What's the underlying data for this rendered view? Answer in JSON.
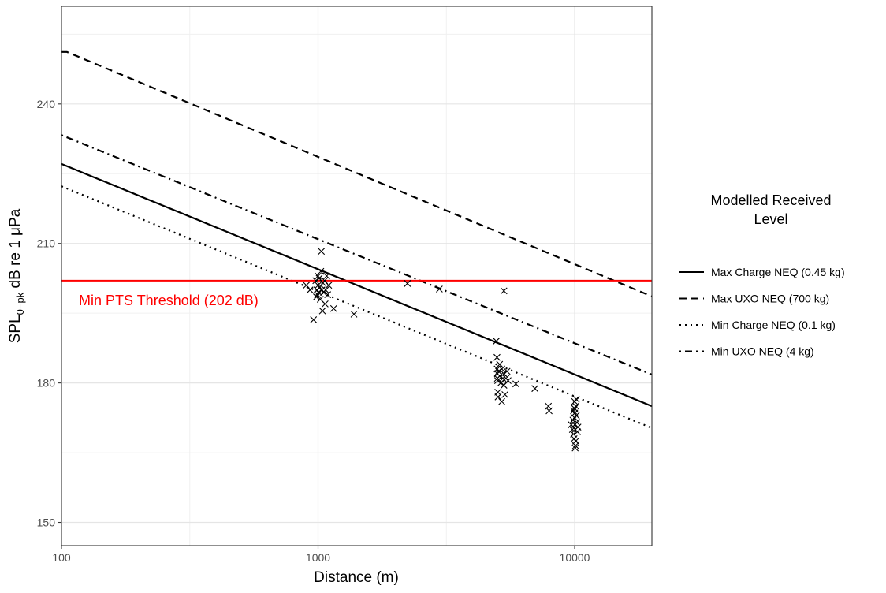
{
  "chart_data": {
    "type": "line",
    "xlabel": "Distance (m)",
    "ylabel_main": "SPL",
    "ylabel_sub": "0−pk",
    "ylabel_rest": " dB re 1 μPa",
    "xscale": "log",
    "xlim": [
      100,
      20000
    ],
    "ylim": [
      145,
      261
    ],
    "x_ticks": [
      100,
      1000,
      10000
    ],
    "x_tick_labels": [
      "100",
      "1000",
      "10000"
    ],
    "y_ticks": [
      150,
      180,
      210,
      240
    ],
    "y_tick_labels": [
      "150",
      "180",
      "210",
      "240"
    ],
    "grid": true,
    "legend": {
      "title_line1": "Modelled Received",
      "title_line2": "Level",
      "position": "right",
      "entries": [
        {
          "label": "Max Charge NEQ (0.45 kg)",
          "dash": "solid"
        },
        {
          "label": "Max UXO NEQ (700 kg)",
          "dash": "dashed"
        },
        {
          "label": "Min Charge NEQ (0.1 kg)",
          "dash": "dotted"
        },
        {
          "label": "Min UXO NEQ (4 kg)",
          "dash": "dotdash"
        }
      ]
    },
    "series": [
      {
        "name": "Max Charge NEQ (0.45 kg)",
        "dash": "solid",
        "x": [
          100,
          20000
        ],
        "y": [
          227.1,
          175.0
        ]
      },
      {
        "name": "Max UXO NEQ (700 kg)",
        "dash": "dashed",
        "x": [
          100,
          105,
          20000
        ],
        "y": [
          251.2,
          251.2,
          198.6
        ]
      },
      {
        "name": "Min Charge NEQ (0.1 kg)",
        "dash": "dotted",
        "x": [
          100,
          20000
        ],
        "y": [
          222.3,
          170.3
        ]
      },
      {
        "name": "Min UXO NEQ (4 kg)",
        "dash": "dotdash",
        "x": [
          100,
          20000
        ],
        "y": [
          233.3,
          181.8
        ]
      }
    ],
    "threshold": {
      "label": "Min PTS Threshold (202 dB)",
      "y": 202,
      "color": "#ff0000"
    },
    "measured_points": [
      [
        960,
        193.6
      ],
      [
        980,
        202.0
      ],
      [
        985,
        198.5
      ],
      [
        990,
        200.0
      ],
      [
        995,
        199.0
      ],
      [
        1000,
        203.0
      ],
      [
        1000,
        201.0
      ],
      [
        1005,
        199.5
      ],
      [
        1010,
        202.5
      ],
      [
        1015,
        200.5
      ],
      [
        1020,
        198.0
      ],
      [
        1025,
        204.0
      ],
      [
        1030,
        208.3
      ],
      [
        1035,
        200.0
      ],
      [
        1040,
        195.5
      ],
      [
        1045,
        201.5
      ],
      [
        1050,
        199.5
      ],
      [
        1060,
        202.0
      ],
      [
        1065,
        197.0
      ],
      [
        1070,
        200.0
      ],
      [
        1080,
        203.0
      ],
      [
        1090,
        199.0
      ],
      [
        1100,
        201.0
      ],
      [
        900,
        201.0
      ],
      [
        930,
        200.0
      ],
      [
        1150,
        196.0
      ],
      [
        1380,
        194.8
      ],
      [
        2230,
        201.4
      ],
      [
        2970,
        200.2
      ],
      [
        5300,
        199.8
      ],
      [
        4950,
        189.0
      ],
      [
        4980,
        185.5
      ],
      [
        4990,
        183.0
      ],
      [
        5000,
        182.0
      ],
      [
        5000,
        181.0
      ],
      [
        5010,
        180.5
      ],
      [
        5020,
        178.0
      ],
      [
        5030,
        177.0
      ],
      [
        5050,
        182.5
      ],
      [
        5100,
        181.5
      ],
      [
        5150,
        180.0
      ],
      [
        5200,
        183.0
      ],
      [
        5200,
        176.0
      ],
      [
        5250,
        181.0
      ],
      [
        5300,
        182.0
      ],
      [
        5350,
        177.5
      ],
      [
        5400,
        181.0
      ],
      [
        5450,
        182.5
      ],
      [
        5500,
        180.5
      ],
      [
        5100,
        184.0
      ],
      [
        5300,
        179.5
      ],
      [
        5900,
        179.8
      ],
      [
        7000,
        178.8
      ],
      [
        7900,
        175.0
      ],
      [
        7950,
        174.0
      ],
      [
        9700,
        171.0
      ],
      [
        9800,
        170.0
      ],
      [
        9850,
        172.0
      ],
      [
        9900,
        169.0
      ],
      [
        9950,
        168.0
      ],
      [
        10000,
        176.0
      ],
      [
        10000,
        174.5
      ],
      [
        10000,
        173.5
      ],
      [
        10000,
        172.5
      ],
      [
        10020,
        171.0
      ],
      [
        10050,
        170.0
      ],
      [
        10080,
        166.5
      ],
      [
        10100,
        167.5
      ],
      [
        10100,
        175.0
      ],
      [
        10150,
        173.0
      ],
      [
        10200,
        171.5
      ],
      [
        10250,
        169.5
      ],
      [
        10050,
        166.0
      ],
      [
        10300,
        170.5
      ],
      [
        10150,
        176.5
      ],
      [
        9900,
        174.0
      ]
    ]
  }
}
